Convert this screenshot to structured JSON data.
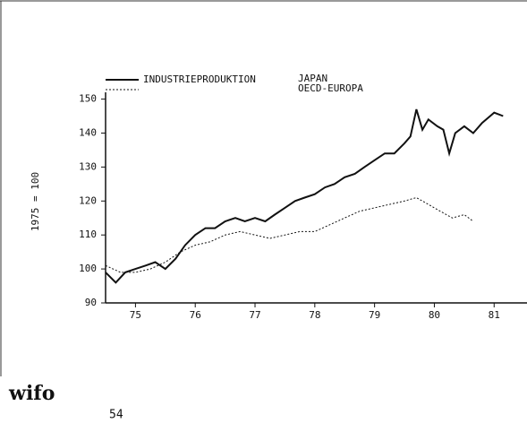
{
  "chart_data": {
    "type": "line",
    "title": "INDUSTRIEPRODUKTION",
    "ylabel": "1975 = 100",
    "xlim": [
      1975,
      1982.05
    ],
    "xticks": [
      {
        "value": 1975.5,
        "label": "75"
      },
      {
        "value": 1976.5,
        "label": "76"
      },
      {
        "value": 1977.5,
        "label": "77"
      },
      {
        "value": 1978.5,
        "label": "78"
      },
      {
        "value": 1979.5,
        "label": "79"
      },
      {
        "value": 1980.5,
        "label": "80"
      },
      {
        "value": 1981.5,
        "label": "81"
      }
    ],
    "ylim": [
      90,
      152
    ],
    "yticks": [
      90,
      100,
      110,
      120,
      130,
      140,
      150
    ],
    "series": [
      {
        "name": "JAPAN",
        "color": "#111111",
        "style": "solid",
        "x": [
          1975.0,
          1975.17,
          1975.33,
          1975.5,
          1975.67,
          1975.83,
          1976.0,
          1976.17,
          1976.33,
          1976.5,
          1976.67,
          1976.83,
          1977.0,
          1977.17,
          1977.33,
          1977.5,
          1977.67,
          1977.83,
          1978.0,
          1978.17,
          1978.33,
          1978.5,
          1978.67,
          1978.83,
          1979.0,
          1979.17,
          1979.33,
          1979.5,
          1979.67,
          1979.83,
          1980.0,
          1980.1,
          1980.2,
          1980.3,
          1980.4,
          1980.55,
          1980.65,
          1980.75,
          1980.85,
          1981.0,
          1981.15,
          1981.3,
          1981.5,
          1981.65
        ],
        "values": [
          99,
          96,
          99,
          100,
          101,
          102,
          100,
          103,
          107,
          110,
          112,
          112,
          114,
          115,
          114,
          115,
          114,
          116,
          118,
          120,
          121,
          122,
          124,
          125,
          127,
          128,
          130,
          132,
          134,
          134,
          137,
          139,
          147,
          141,
          144,
          142,
          141,
          134,
          140,
          142,
          140,
          143,
          146,
          145
        ]
      },
      {
        "name": "OECD-EUROPA",
        "color": "#111111",
        "style": "dashed",
        "x": [
          1975.0,
          1975.25,
          1975.5,
          1975.75,
          1976.0,
          1976.25,
          1976.5,
          1976.75,
          1977.0,
          1977.25,
          1977.5,
          1977.75,
          1978.0,
          1978.25,
          1978.5,
          1978.75,
          1979.0,
          1979.25,
          1979.5,
          1979.75,
          1980.0,
          1980.2,
          1980.4,
          1980.6,
          1980.8,
          1981.0,
          1981.15
        ],
        "values": [
          101,
          99,
          99,
          100,
          102,
          105,
          107,
          108,
          110,
          111,
          110,
          109,
          110,
          111,
          111,
          113,
          115,
          117,
          118,
          119,
          120,
          121,
          119,
          117,
          115,
          116,
          114
        ]
      }
    ]
  },
  "footer": {
    "logo": "wifo",
    "page": "54"
  }
}
